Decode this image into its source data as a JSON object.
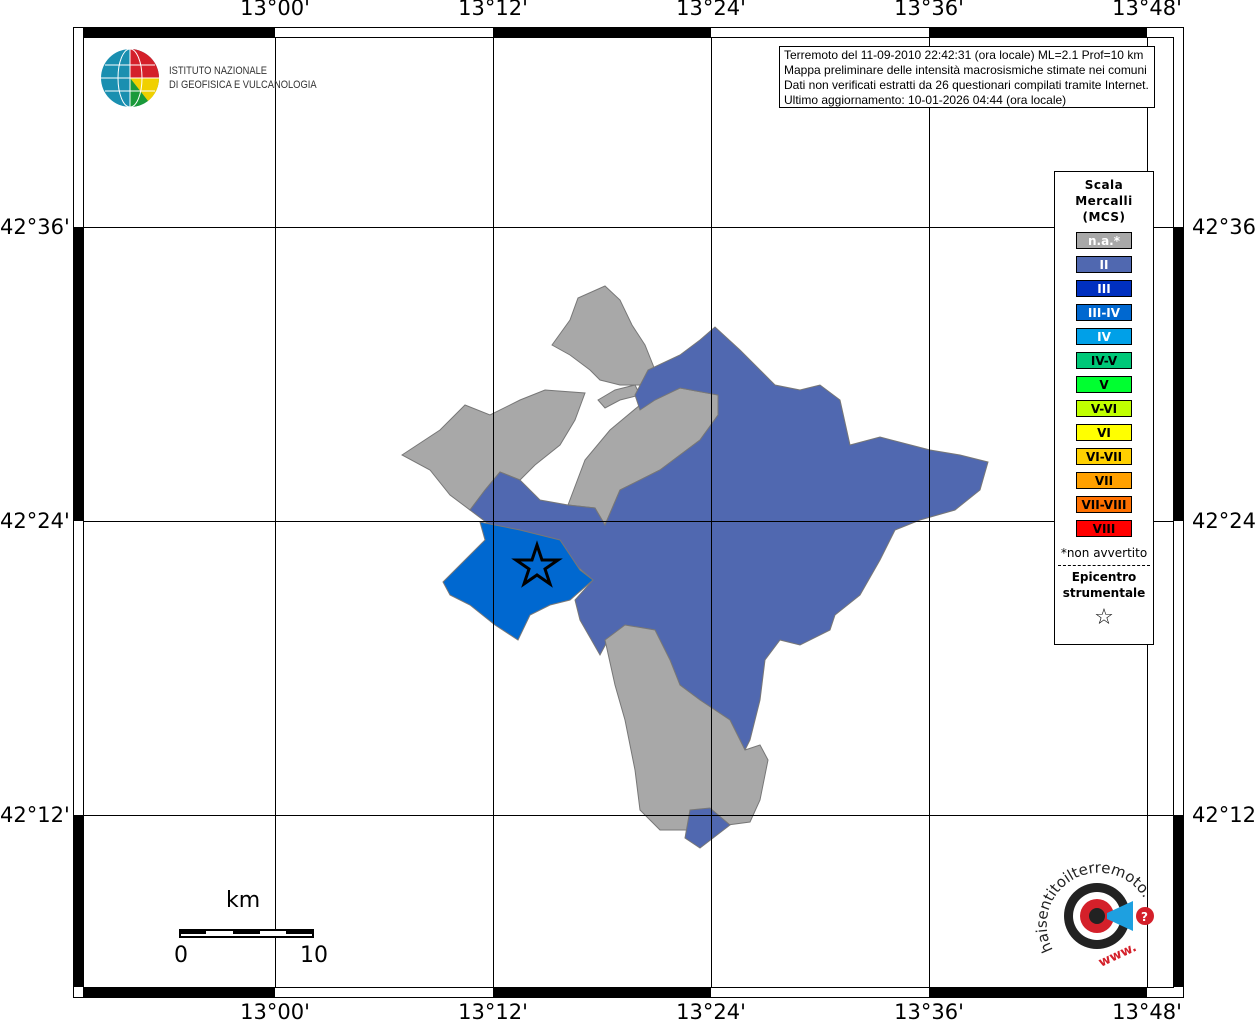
{
  "map": {
    "longitude_labels": [
      "13°00'",
      "13°12'",
      "13°24'",
      "13°36'",
      "13°48'"
    ],
    "latitude_labels": [
      "42°36'",
      "42°24'",
      "42°12'"
    ],
    "epicenter_marker": "star-icon",
    "colors": {
      "not_felt": "#a8a8a8",
      "II": "#5068b0",
      "III-IV": "#0068d0"
    }
  },
  "info": {
    "lines": [
      "Terremoto del 11-09-2010 22:42:31 (ora locale) ML=2.1 Prof=10 km",
      "Mappa preliminare delle intensità macrosismiche stimate nei comuni",
      "Dati non verificati estratti da 26 questionari compilati tramite Internet.",
      "Ultimo aggiornamento: 10-01-2026 04:44 (ora locale)"
    ]
  },
  "legend": {
    "title": [
      "Scala",
      "Mercalli",
      "(MCS)"
    ],
    "items": [
      {
        "label": "n.a.*",
        "color": "#a8a8a8",
        "text_color": "#ffffff"
      },
      {
        "label": "II",
        "color": "#5068b0",
        "text_color": "#ffffff"
      },
      {
        "label": "III",
        "color": "#0030c0",
        "text_color": "#ffffff"
      },
      {
        "label": "III-IV",
        "color": "#0068d0",
        "text_color": "#ffffff"
      },
      {
        "label": "IV",
        "color": "#00a0e8",
        "text_color": "#ffffff"
      },
      {
        "label": "IV-V",
        "color": "#00c878",
        "text_color": "#000000"
      },
      {
        "label": "V",
        "color": "#00ff30",
        "text_color": "#000000"
      },
      {
        "label": "V-VI",
        "color": "#c0ff00",
        "text_color": "#000000"
      },
      {
        "label": "VI",
        "color": "#ffff00",
        "text_color": "#000000"
      },
      {
        "label": "VI-VII",
        "color": "#ffd000",
        "text_color": "#000000"
      },
      {
        "label": "VII",
        "color": "#ffa000",
        "text_color": "#000000"
      },
      {
        "label": "VII-VIII",
        "color": "#ff7000",
        "text_color": "#000000"
      },
      {
        "label": "VIII",
        "color": "#ff0000",
        "text_color": "#000000"
      }
    ],
    "note": "*non avvertito",
    "epicenter_title": [
      "Epicentro",
      "strumentale"
    ],
    "epicenter_symbol": "☆"
  },
  "logo_ingv": {
    "line1": "ISTITUTO NAZIONALE",
    "line2": "DI GEOFISICA E VULCANOLOGIA"
  },
  "logo_hsi": {
    "text": "haisentitoilterremoto.it",
    "url_text": "www."
  },
  "scalebar": {
    "unit": "km",
    "min": "0",
    "max": "10"
  }
}
